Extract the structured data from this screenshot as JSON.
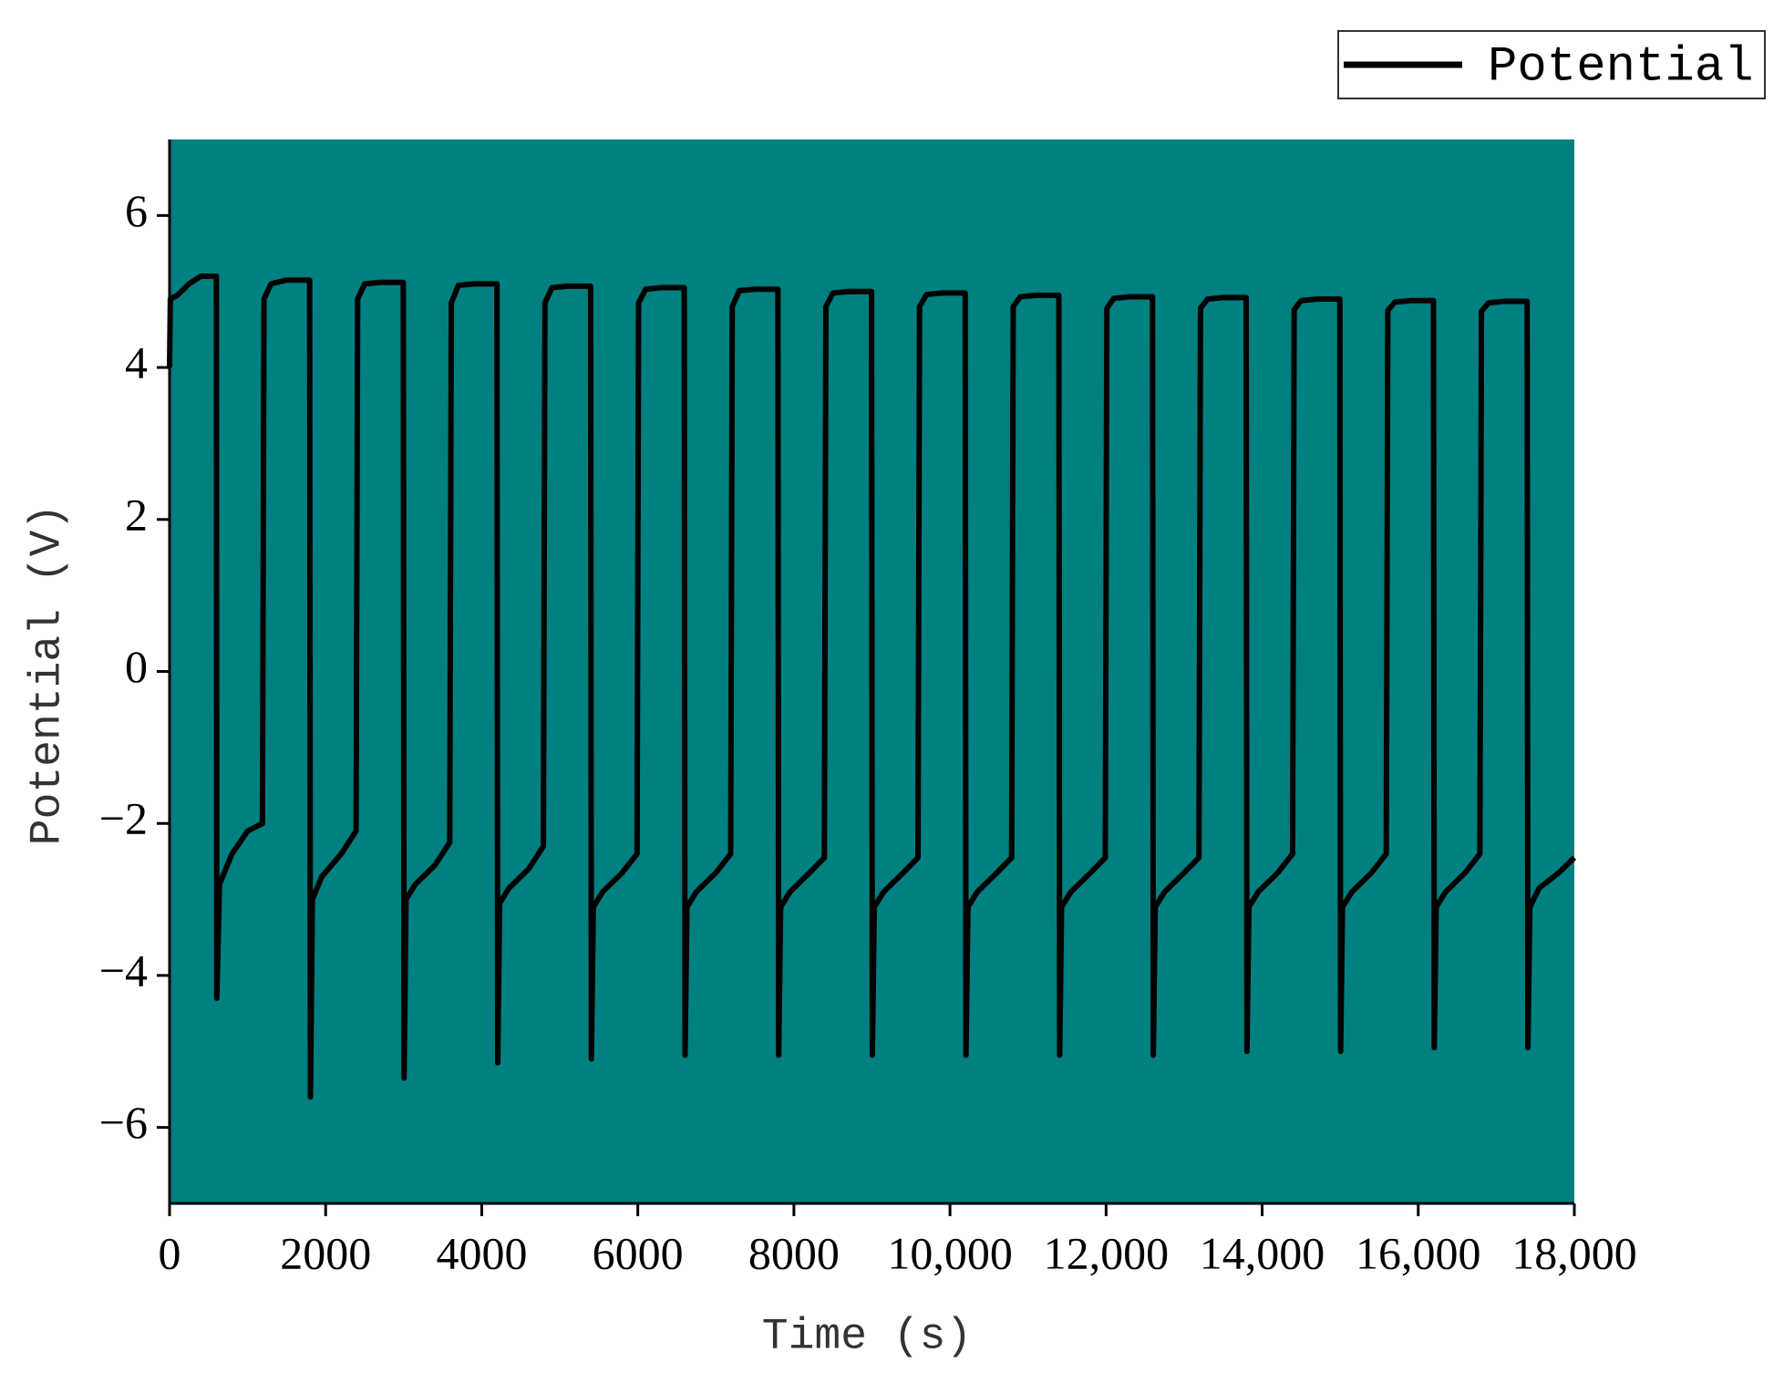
{
  "chart_data": {
    "type": "line",
    "xlabel": "Time (s)",
    "ylabel": "Potential (V)",
    "background": "#008080",
    "legend": "top-right",
    "x": [
      0,
      10,
      100,
      250,
      400,
      600,
      605,
      640,
      800,
      1000,
      1190,
      1210,
      1300,
      1500,
      1795,
      1805,
      1830,
      1950,
      2200,
      2390,
      2410,
      2500,
      2700,
      2995,
      3005,
      3030,
      3150,
      3400,
      3590,
      3610,
      3700,
      3900,
      4195,
      4205,
      4230,
      4350,
      4600,
      4790,
      4810,
      4900,
      5100,
      5395,
      5405,
      5430,
      5550,
      5800,
      5990,
      6010,
      6100,
      6300,
      6595,
      6605,
      6630,
      6750,
      7000,
      7190,
      7210,
      7300,
      7500,
      7795,
      7805,
      7830,
      7950,
      8200,
      8390,
      8410,
      8500,
      8700,
      8995,
      9005,
      9030,
      9150,
      9400,
      9590,
      9610,
      9700,
      9900,
      10195,
      10205,
      10230,
      10350,
      10600,
      10790,
      10810,
      10900,
      11100,
      11395,
      11405,
      11430,
      11550,
      11800,
      11990,
      12010,
      12100,
      12300,
      12595,
      12605,
      12630,
      12750,
      13000,
      13190,
      13210,
      13300,
      13500,
      13795,
      13805,
      13830,
      13950,
      14200,
      14390,
      14410,
      14500,
      14700,
      14995,
      15005,
      15030,
      15150,
      15400,
      15590,
      15610,
      15700,
      15900,
      16195,
      16205,
      16230,
      16350,
      16600,
      16790,
      16810,
      16900,
      17100,
      17395,
      17405,
      17430,
      17550,
      17800,
      17950,
      18000
    ],
    "series": [
      {
        "name": "Potential",
        "color": "#000000",
        "values": [
          4.0,
          4.9,
          4.95,
          5.1,
          5.2,
          5.2,
          -4.3,
          -2.8,
          -2.4,
          -2.1,
          -2.0,
          4.9,
          5.1,
          5.15,
          5.15,
          -5.6,
          -3.0,
          -2.7,
          -2.4,
          -2.1,
          4.9,
          5.1,
          5.12,
          5.12,
          -5.35,
          -3.0,
          -2.8,
          -2.55,
          -2.25,
          4.85,
          5.08,
          5.1,
          5.1,
          -5.15,
          -3.05,
          -2.85,
          -2.6,
          -2.3,
          4.85,
          5.05,
          5.07,
          5.07,
          -5.1,
          -3.1,
          -2.9,
          -2.65,
          -2.4,
          4.85,
          5.03,
          5.05,
          5.05,
          -5.05,
          -3.1,
          -2.9,
          -2.65,
          -2.4,
          4.8,
          5.01,
          5.03,
          5.03,
          -5.05,
          -3.1,
          -2.9,
          -2.65,
          -2.45,
          4.8,
          4.98,
          5.0,
          5.0,
          -5.05,
          -3.1,
          -2.9,
          -2.65,
          -2.45,
          4.8,
          4.96,
          4.98,
          4.98,
          -5.05,
          -3.1,
          -2.9,
          -2.65,
          -2.45,
          4.8,
          4.93,
          4.95,
          4.95,
          -5.05,
          -3.1,
          -2.9,
          -2.65,
          -2.45,
          4.78,
          4.91,
          4.93,
          4.93,
          -5.05,
          -3.1,
          -2.9,
          -2.65,
          -2.45,
          4.78,
          4.9,
          4.92,
          4.92,
          -5.0,
          -3.1,
          -2.9,
          -2.65,
          -2.4,
          4.76,
          4.88,
          4.9,
          4.9,
          -5.0,
          -3.1,
          -2.9,
          -2.65,
          -2.4,
          4.75,
          4.86,
          4.88,
          4.88,
          -4.95,
          -3.1,
          -2.9,
          -2.65,
          -2.4,
          4.74,
          4.85,
          4.87,
          4.87,
          -4.95,
          -3.1,
          -2.85,
          -2.65,
          -2.5,
          -2.45
        ]
      }
    ],
    "xlim": [
      0,
      18000
    ],
    "xticks": [
      0,
      2000,
      4000,
      6000,
      8000,
      {
        "value": 10000,
        "label": "10,000"
      },
      {
        "value": 12000,
        "label": "12,000"
      },
      {
        "value": 14000,
        "label": "14,000"
      },
      {
        "value": 16000,
        "label": "16,000"
      },
      {
        "value": 18000,
        "label": "18,000"
      }
    ],
    "ylim": [
      -7,
      7
    ],
    "yticks": [
      {
        "value": -6,
        "label": "−6"
      },
      {
        "value": -4,
        "label": "−4"
      },
      {
        "value": -2,
        "label": "−2"
      },
      0,
      2,
      4,
      6
    ]
  }
}
